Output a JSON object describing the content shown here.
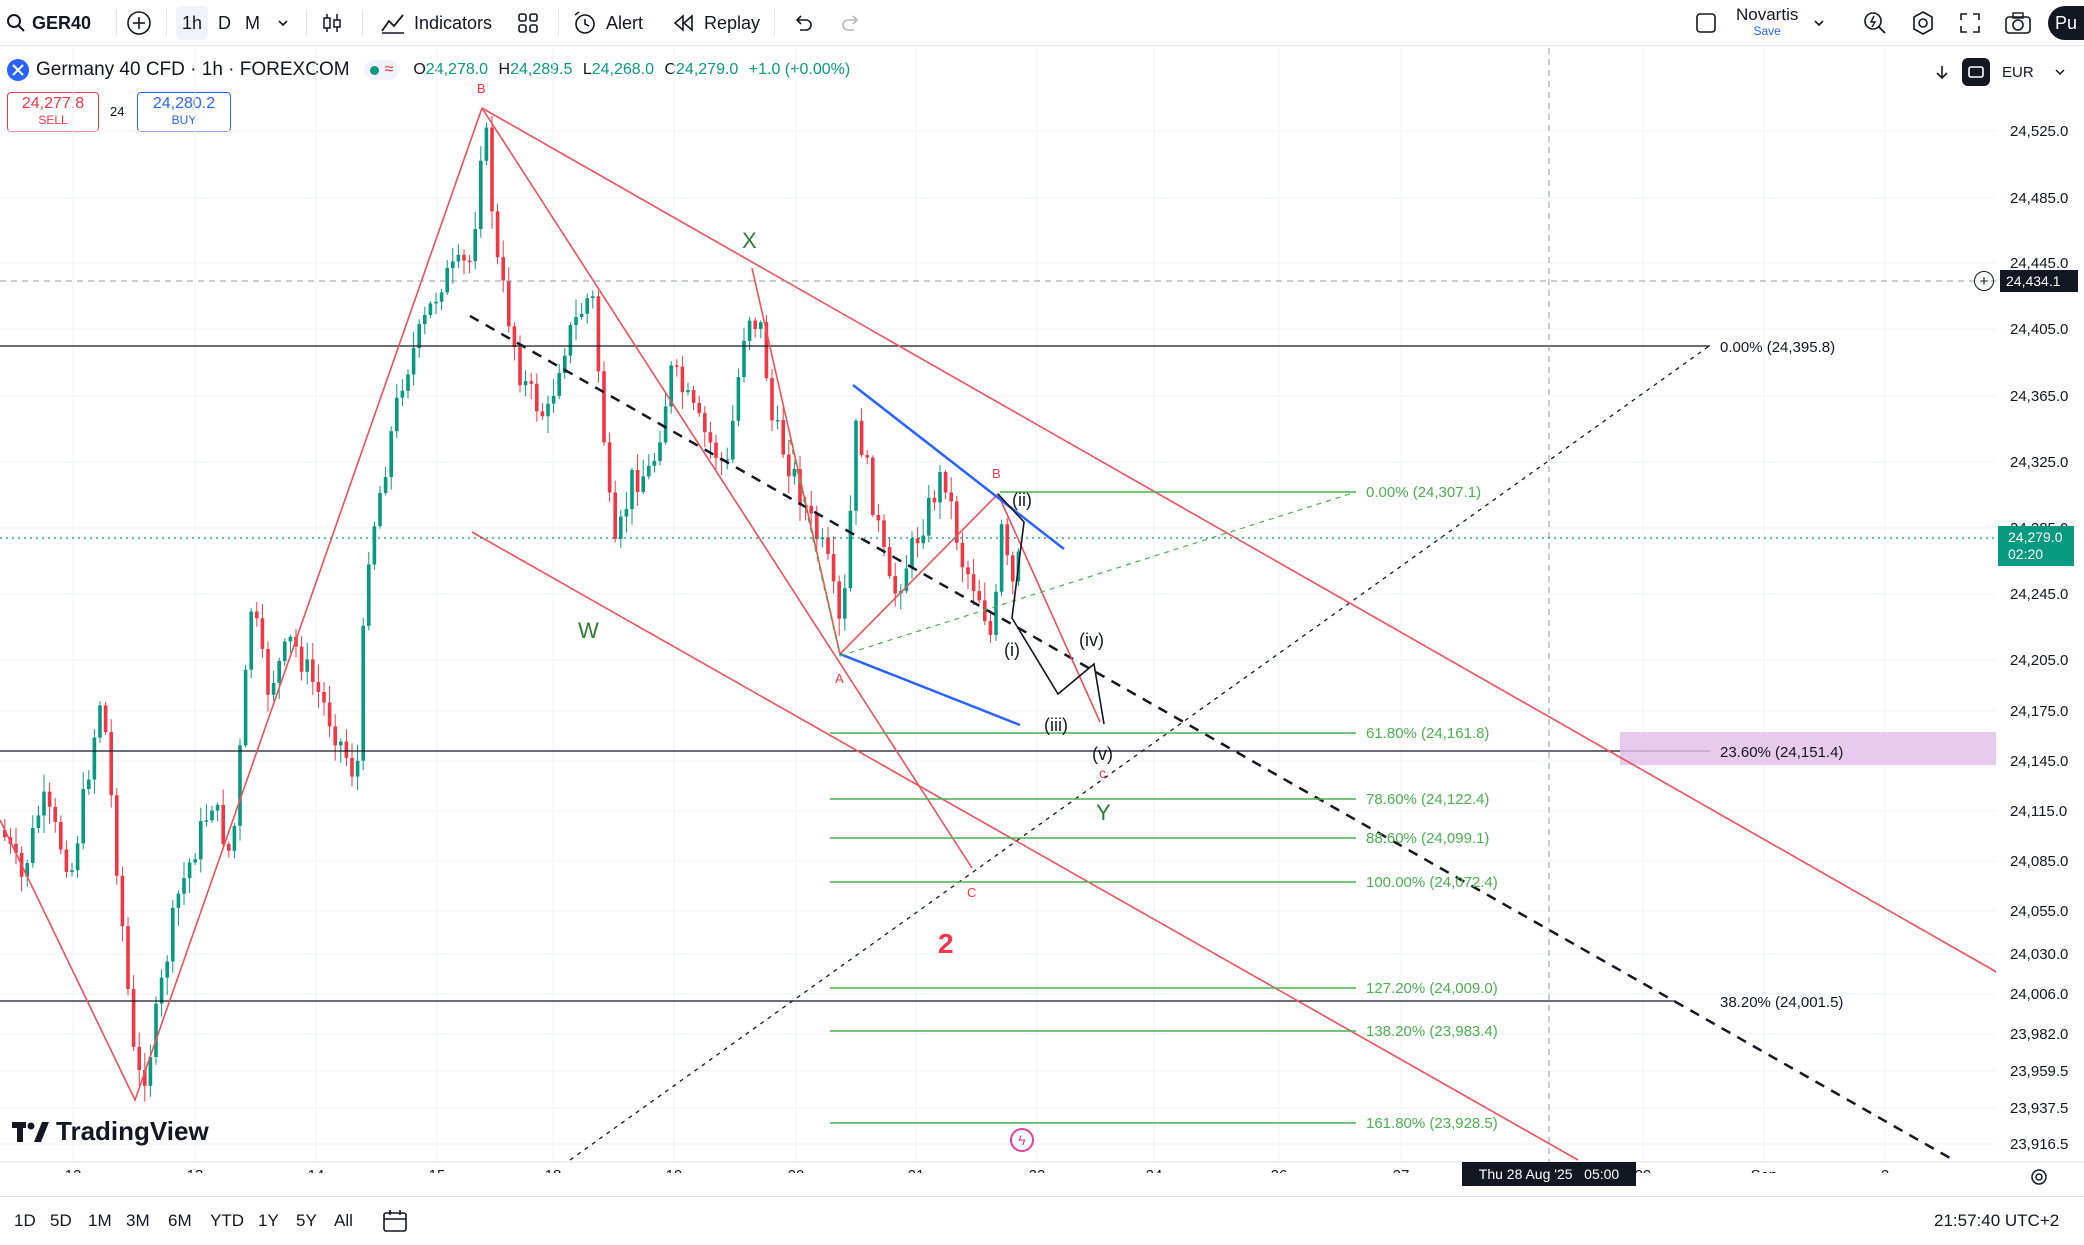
{
  "toolbar": {
    "symbol": "GER40",
    "intervals": [
      "1h",
      "D",
      "M"
    ],
    "indicators_label": "Indicators",
    "alert_label": "Alert",
    "replay_label": "Replay",
    "layout_name": "Novartis",
    "layout_status": "Save",
    "publish_label": "Pu"
  },
  "legend": {
    "title": "Germany 40 CFD · 1h · FOREXCOM",
    "o_label": "O",
    "o": "24,278.0",
    "h_label": "H",
    "h": "24,289.5",
    "l_label": "L",
    "l": "24,268.0",
    "c_label": "C",
    "c": "24,279.0",
    "change": "+1.0 (+0.00%)"
  },
  "trade": {
    "sell_price": "24,277.8",
    "sell_label": "SELL",
    "spread": "24",
    "buy_price": "24,280.2",
    "buy_label": "BUY"
  },
  "currency": "EUR",
  "price_axis": [
    "24,525.0",
    "24,485.0",
    "24,445.0",
    "24,405.0",
    "24,365.0",
    "24,325.0",
    "24,285.0",
    "24,245.0",
    "24,205.0",
    "24,175.0",
    "24,145.0",
    "24,115.0",
    "24,085.0",
    "24,055.0",
    "24,030.0",
    "24,006.0",
    "23,982.0",
    "23,959.5",
    "23,937.5",
    "23,916.5"
  ],
  "crosshair_price": "24,434.1",
  "last_price": "24,279.0",
  "countdown": "02:20",
  "time_axis": [
    "12",
    "13",
    "14",
    "15",
    "18",
    "19",
    "20",
    "21",
    "22",
    "24",
    "26",
    "27",
    "29",
    "Sep",
    "2"
  ],
  "crosshair_time": "Thu 28 Aug '25   05:00",
  "fib_large": [
    "0.00% (24,395.8)",
    "23.60% (24,151.4)",
    "38.20% (24,001.5)"
  ],
  "fib_small": [
    "0.00% (24,307.1)",
    "61.80% (24,161.8)",
    "78.60% (24,122.4)",
    "88.60% (24,099.1)",
    "100.00% (24,072.4)",
    "127.20% (24,009.0)",
    "138.20% (23,983.4)",
    "161.80% (23,928.5)"
  ],
  "wave_labels": {
    "b_top": "B",
    "x": "X",
    "w": "W",
    "a": "A",
    "b2": "B",
    "c_small": "c",
    "c_low": "C",
    "y": "Y",
    "two": "2",
    "i": "(i)",
    "ii": "(ii)",
    "iii": "(iii)",
    "iv": "(iv)",
    "v": "(v)"
  },
  "ranges": [
    "1D",
    "5D",
    "1M",
    "3M",
    "6M",
    "YTD",
    "1Y",
    "5Y",
    "All"
  ],
  "clock": "21:57:40 UTC+2",
  "branding": "TradingView",
  "colors": {
    "up": "#089981",
    "down": "#f23645",
    "fib": "#4caf50",
    "channel": "#f0505a",
    "blue": "#2962ff"
  }
}
